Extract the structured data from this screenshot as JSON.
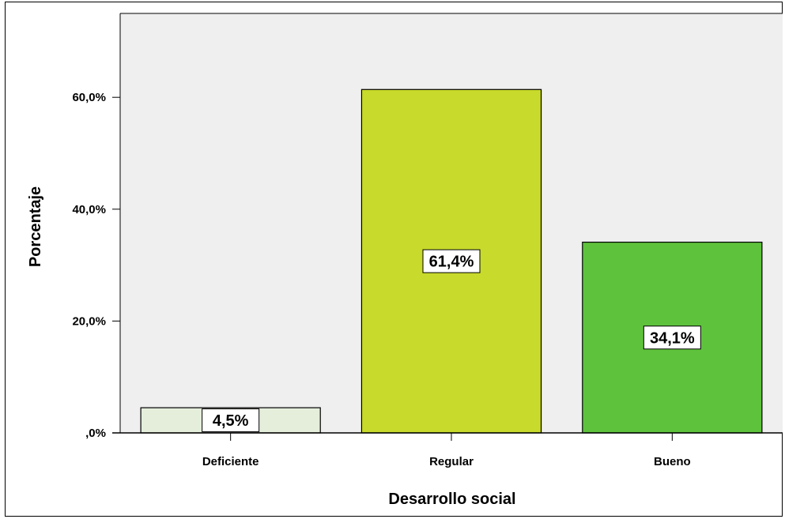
{
  "chart_data": {
    "type": "bar",
    "categories": [
      "Deficiente",
      "Regular",
      "Bueno"
    ],
    "values": [
      4.5,
      61.4,
      34.1
    ],
    "data_labels": [
      "4,5%",
      "61,4%",
      "34,1%"
    ],
    "colors": [
      "#e4eedb",
      "#c8da2b",
      "#5ec23c"
    ],
    "xlabel": "Desarrollo social",
    "ylabel": "Porcentaje",
    "ylim": [
      0,
      75
    ],
    "yticks": [
      0,
      20,
      40,
      60
    ],
    "ytick_labels": [
      ",0%",
      "20,0%",
      "40,0%",
      "60,0%"
    ],
    "plot_background": "#efefef",
    "grid": false,
    "legend": "none"
  }
}
